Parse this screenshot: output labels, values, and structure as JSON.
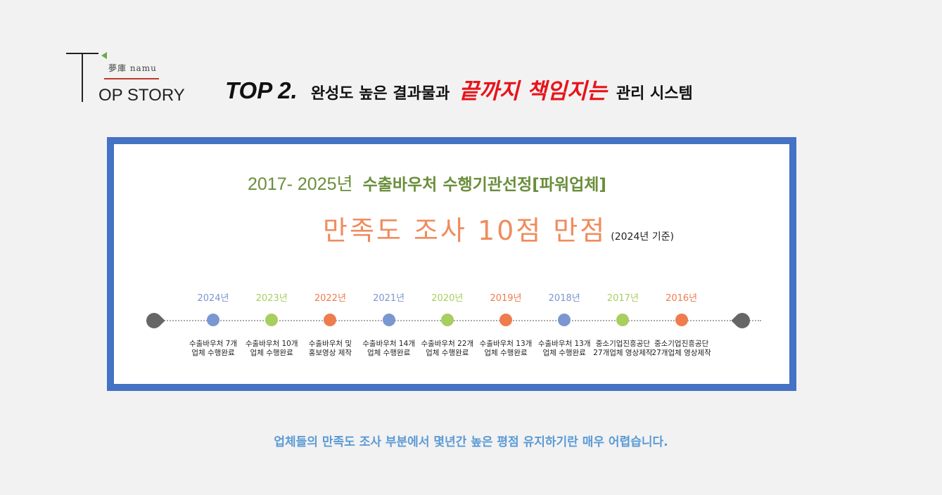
{
  "logo": {
    "brand": "夢庫 namu",
    "story": "OP STORY",
    "accent_color": "#6aa84f",
    "line_color": "#c0392b"
  },
  "headline": {
    "top": "TOP 2.",
    "part_a": "완성도 높은 결과물과",
    "highlight": "끝까지 책임지는",
    "part_b": "관리 시스템",
    "highlight_color": "#e8141b"
  },
  "card": {
    "border_color": "#4472c4",
    "years": "2017- 2025년",
    "selection": "수출바우처 수행기관선정[파워업체]",
    "satisfaction": "만족도 조사 10점 만점",
    "basis": "(2024년 기준)",
    "timeline": [
      {
        "year": "2024년",
        "color": "#7b96d1",
        "desc": "수출바우처 7개\n업체 수행완료"
      },
      {
        "year": "2023년",
        "color": "#a9cd5f",
        "desc": "수출바우처 10개\n업체 수행완료"
      },
      {
        "year": "2022년",
        "color": "#ee7c4e",
        "desc": "수출바우처 및\n홍보영상 제작"
      },
      {
        "year": "2021년",
        "color": "#7b96d1",
        "desc": "수출바우처 14개\n업체 수행완료"
      },
      {
        "year": "2020년",
        "color": "#a9cd5f",
        "desc": "수출바우처 22개\n업체 수행완료"
      },
      {
        "year": "2019년",
        "color": "#ee7c4e",
        "desc": "수출바우처 13개\n업체 수행완료"
      },
      {
        "year": "2018년",
        "color": "#7b96d1",
        "desc": "수출바우처 13개\n업체 수행완료"
      },
      {
        "year": "2017년",
        "color": "#a9cd5f",
        "desc": "중소기업진흥공단\n27개업체 영상제작"
      },
      {
        "year": "2016년",
        "color": "#ee7c4e",
        "desc": "중소기업진흥공단\n27개업체 영상제작"
      }
    ]
  },
  "footer": "업체들의 만족도 조사 부분에서 몇년간 높은 평점 유지하기란 매우 어렵습니다."
}
